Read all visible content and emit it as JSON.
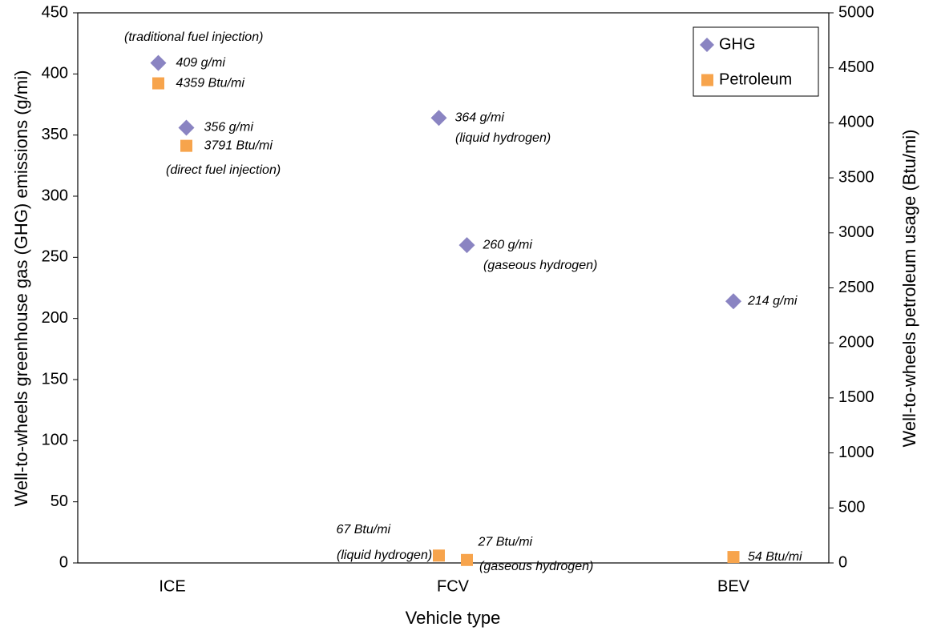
{
  "chart_data": {
    "type": "scatter",
    "x_label": "Vehicle type",
    "y_label": "Well-to-wheels greenhouse gas (GHG) emissions (g/mi)",
    "y2_label": "Well-to-wheels petroleum usage (Btu/mi)",
    "categories": [
      "ICE",
      "FCV",
      "BEV"
    ],
    "x": [
      "ICE",
      "ICE",
      "FCV",
      "FCV",
      "BEV"
    ],
    "ylim": [
      0,
      450
    ],
    "yticks": [
      0,
      50,
      100,
      150,
      200,
      250,
      300,
      350,
      400,
      450
    ],
    "y2lim": [
      0,
      5000
    ],
    "y2ticks": [
      0,
      500,
      1000,
      1500,
      2000,
      2500,
      3000,
      3500,
      4000,
      4500,
      5000
    ],
    "legend": "upper right",
    "series": [
      {
        "name": "GHG",
        "color": "#8a84c2",
        "marker": "diamond",
        "values": [
          409,
          356,
          364,
          260,
          214
        ],
        "value_labels": [
          "409 g/mi",
          "356 g/mi",
          "364 g/mi",
          "260 g/mi",
          "214 g/mi"
        ]
      },
      {
        "name": "Petroleum",
        "color": "#f7a44c",
        "marker": "square",
        "axis": "y2",
        "values": [
          4359,
          3791,
          67,
          27,
          54
        ],
        "value_labels": [
          "4359 Btu/mi",
          "3791 Btu/mi",
          "67 Btu/mi",
          "27 Btu/mi",
          "54 Btu/mi"
        ]
      }
    ],
    "annotations": [
      "(traditional fuel injection)",
      "(direct fuel injection)",
      "(liquid hydrogen)",
      "(gaseous hydrogen)",
      "(liquid hydrogen)",
      "(gaseous hydrogen)"
    ]
  }
}
